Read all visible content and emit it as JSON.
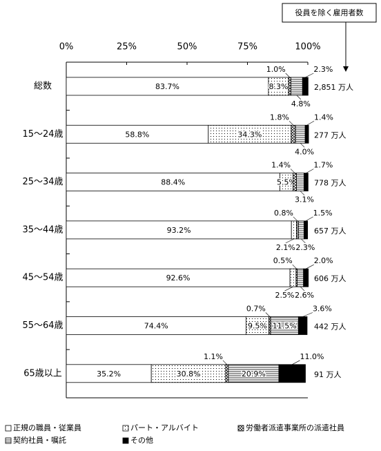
{
  "chart_data": {
    "type": "stacked-bar-horizontal",
    "note_box": "役員を除く雇用者数",
    "categories": [
      "総数",
      "15～24歳",
      "25～34歳",
      "35～44歳",
      "45～54歳",
      "55～64歳",
      "65歳以上"
    ],
    "totals": [
      "2,851 万人",
      "277 万人",
      "778 万人",
      "657 万人",
      "606 万人",
      "442 万人",
      "91 万人"
    ],
    "xlim": [
      0,
      100
    ],
    "xticks": [
      {
        "value": 0,
        "label": "0%"
      },
      {
        "value": 25,
        "label": "25%"
      },
      {
        "value": 50,
        "label": "50%"
      },
      {
        "value": 75,
        "label": "75%"
      },
      {
        "value": 100,
        "label": "100%"
      }
    ],
    "series": [
      {
        "name": "正規の職員・従業員",
        "color": "#ffffff",
        "pattern": "none",
        "values": [
          83.7,
          58.8,
          88.4,
          93.2,
          92.6,
          74.4,
          35.2
        ],
        "value_labels": [
          "83.7%",
          "58.8%",
          "88.4%",
          "93.2%",
          "92.6%",
          "74.4%",
          "35.2%"
        ]
      },
      {
        "name": "パート・アルバイト",
        "color": "#ffffff",
        "pattern": "dots",
        "values": [
          8.3,
          34.3,
          5.5,
          2.1,
          2.5,
          9.5,
          30.8
        ],
        "value_labels": [
          "8.3%",
          "34.3%",
          "5.5%",
          "2.1%",
          "2.5%",
          "9.5%",
          "30.8%"
        ]
      },
      {
        "name": "労働者派遣事業所の派遣社員",
        "color": "#ffffff",
        "pattern": "crosshatch",
        "values": [
          1.0,
          1.8,
          1.4,
          0.8,
          0.5,
          0.7,
          1.1
        ],
        "value_labels": [
          "1.0%",
          "1.8%",
          "1.4%",
          "0.8%",
          "0.5%",
          "0.7%",
          "1.1%"
        ]
      },
      {
        "name": "契約社員・嘱託",
        "color": "#ffffff",
        "pattern": "hlines",
        "values": [
          4.8,
          4.0,
          3.1,
          2.3,
          2.6,
          11.5,
          20.9
        ],
        "value_labels": [
          "4.8%",
          "4.0%",
          "3.1%",
          "2.3%",
          "2.6%",
          "11.5%",
          "20.9%"
        ]
      },
      {
        "name": "その他",
        "color": "#000000",
        "pattern": "solid",
        "values": [
          2.3,
          1.4,
          1.7,
          1.5,
          2.0,
          3.6,
          11.0
        ],
        "value_labels": [
          "2.3%",
          "1.4%",
          "1.7%",
          "1.5%",
          "2.0%",
          "3.6%",
          "11.0%"
        ]
      }
    ]
  }
}
